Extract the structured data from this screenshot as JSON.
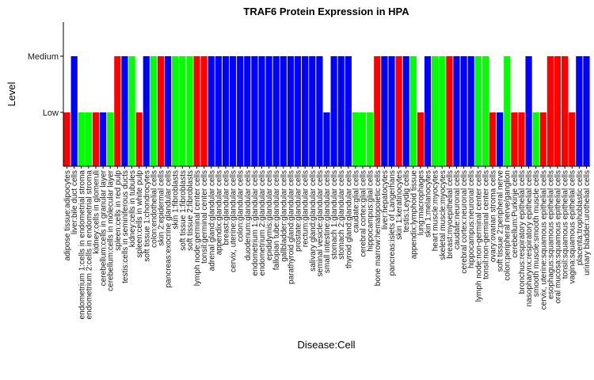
{
  "chart_data": {
    "type": "bar",
    "title": "TRAF6 Protein Expression in HPA",
    "xlabel": "Disease:Cell",
    "ylabel": "Level",
    "y_levels": [
      "Low",
      "Medium"
    ],
    "categories": [
      "adipose tissue:adipocytes",
      "liver:bile duct cells",
      "endometrium 1:cells in endometrial stroma",
      "endometrium 2:cells in endometrial stroma",
      "kidney:cells in glomeruli",
      "cerebellum:cells in granular layer",
      "cerebellum:cells in molecular layer",
      "spleen:cells in red pulp",
      "testis:cells in seminiferous ducts",
      "kidney:cells in tubules",
      "spleen:cells in white pulp",
      "soft tissue 1:chondrocytes",
      "colon:endothelial cells",
      "skin 2:epidermal cells",
      "pancreas:exocrine glandular cells",
      "skin 1:fibroblasts",
      "soft tissue 1:fibroblasts",
      "soft tissue 2:fibroblasts",
      "lymph node:germinal center cells",
      "tonsil:germinal center cells",
      "adrenal gland:glandular cells",
      "appendix:glandular cells",
      "breast:glandular cells",
      "cervix, uterine:glandular cells",
      "colon:glandular cells",
      "duodenum:glandular cells",
      "endometrium 1:glandular cells",
      "endometrium 2:glandular cells",
      "epididymis:glandular cells",
      "fallopian tube:glandular cells",
      "gallbladder:glandular cells",
      "parathyroid gland:glandular cells",
      "prostate:glandular cells",
      "rectum:glandular cells",
      "salivary gland:glandular cells",
      "seminal vesicle:glandular cells",
      "small intestine:glandular cells",
      "stomach 1:glandular cells",
      "stomach 2:glandular cells",
      "thyroid gland:glandular cells",
      "caudate:glial cells",
      "cerebral cortex:glial cells",
      "hippocampus:glial cells",
      "bone marrow:hematopoietic cells",
      "liver:hepatocytes",
      "pancreas:islets of Langerhans",
      "skin 1:keratinocytes",
      "testis:Leydig cells",
      "appendix:lymphoid tissue",
      "lung:macrophages",
      "skin 1:melanocytes",
      "heart muscle:myocytes",
      "skeletal muscle:myocytes",
      "breast:myoepithelial cells",
      "caudate:neuronal cells",
      "cerebral cortex:neuronal cells",
      "hippocampus:neuronal cells",
      "lymph node:non-germinal center cells",
      "tonsil:non-germinal center cells",
      "ovary:ovarian stroma cells",
      "soft tissue 2:peripheral nerve",
      "colon:peripheral nerve/ganglion",
      "cerebellum:Purkinje cells",
      "bronchus:respiratory epithelial cells",
      "nasopharynx:respiratory epithelial cells",
      "smooth muscle:smooth muscle cells",
      "cervix, uterine:squamous epithelial cells",
      "esophagus:squamous epithelial cells",
      "oral mucosa:squamous epithelial cells",
      "tonsil:squamous epithelial cells",
      "vagina:squamous epithelial cells",
      "placenta:trophoblastic cells",
      "urinary bladder:urothelial cells"
    ],
    "values": [
      "Low",
      "Medium",
      "Low",
      "Low",
      "Low",
      "Low",
      "Low",
      "Medium",
      "Medium",
      "Medium",
      "Low",
      "Medium",
      "Medium",
      "Medium",
      "Medium",
      "Medium",
      "Medium",
      "Medium",
      "Medium",
      "Medium",
      "Medium",
      "Medium",
      "Medium",
      "Medium",
      "Medium",
      "Medium",
      "Medium",
      "Medium",
      "Medium",
      "Medium",
      "Medium",
      "Medium",
      "Medium",
      "Medium",
      "Medium",
      "Medium",
      "Low",
      "Medium",
      "Medium",
      "Medium",
      "Low",
      "Low",
      "Low",
      "Medium",
      "Medium",
      "Medium",
      "Medium",
      "Medium",
      "Medium",
      "Low",
      "Medium",
      "Medium",
      "Medium",
      "Medium",
      "Medium",
      "Medium",
      "Medium",
      "Medium",
      "Medium",
      "Low",
      "Low",
      "Medium",
      "Low",
      "Low",
      "Medium",
      "Low",
      "Low",
      "Medium",
      "Medium",
      "Medium",
      "Low",
      "Medium",
      "Medium"
    ],
    "bar_colors": [
      "#ff0000",
      "#0000ff",
      "#00ff00",
      "#00ff00",
      "#ff0000",
      "#0000ff",
      "#00ff00",
      "#ff0000",
      "#0000ff",
      "#00ff00",
      "#ff0000",
      "#0000ff",
      "#00ff00",
      "#ff0000",
      "#0000ff",
      "#00ff00",
      "#00ff00",
      "#00ff00",
      "#ff0000",
      "#ff0000",
      "#0000ff",
      "#0000ff",
      "#0000ff",
      "#0000ff",
      "#0000ff",
      "#0000ff",
      "#0000ff",
      "#0000ff",
      "#0000ff",
      "#0000ff",
      "#0000ff",
      "#0000ff",
      "#0000ff",
      "#0000ff",
      "#0000ff",
      "#0000ff",
      "#0000ff",
      "#0000ff",
      "#0000ff",
      "#0000ff",
      "#00ff00",
      "#00ff00",
      "#00ff00",
      "#ff0000",
      "#0000ff",
      "#0000ff",
      "#ff0000",
      "#0000ff",
      "#00ff00",
      "#ff0000",
      "#0000ff",
      "#00ff00",
      "#00ff00",
      "#ff0000",
      "#0000ff",
      "#0000ff",
      "#0000ff",
      "#00ff00",
      "#00ff00",
      "#ff0000",
      "#0000ff",
      "#00ff00",
      "#ff0000",
      "#ff0000",
      "#0000ff",
      "#00ff00",
      "#ff0000",
      "#ff0000",
      "#ff0000",
      "#ff0000",
      "#ff0000",
      "#0000ff",
      "#0000ff"
    ],
    "colors": {
      "red": "#ff0000",
      "green": "#00ff00",
      "blue": "#0000ff"
    },
    "grid": false,
    "legend": "none"
  }
}
